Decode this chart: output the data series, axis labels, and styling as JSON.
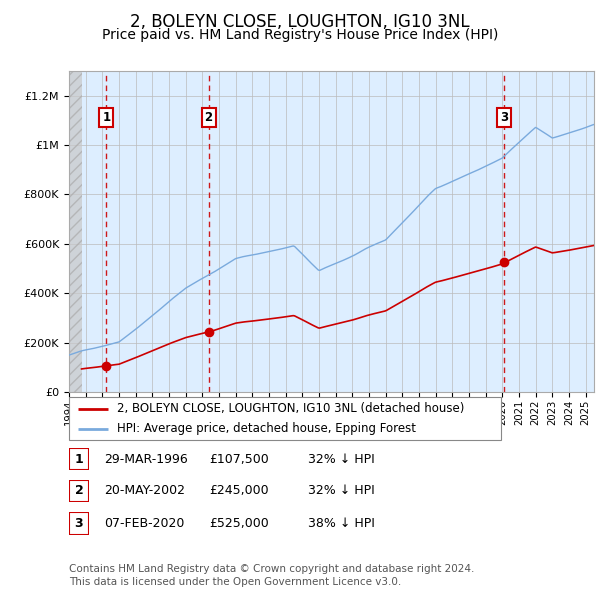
{
  "title": "2, BOLEYN CLOSE, LOUGHTON, IG10 3NL",
  "subtitle": "Price paid vs. HM Land Registry's House Price Index (HPI)",
  "xlim_start": 1994.0,
  "xlim_end": 2025.5,
  "ylim_min": 0,
  "ylim_max": 1300000,
  "yticks": [
    0,
    200000,
    400000,
    600000,
    800000,
    1000000,
    1200000
  ],
  "ytick_labels": [
    "£0",
    "£200K",
    "£400K",
    "£600K",
    "£800K",
    "£1M",
    "£1.2M"
  ],
  "transactions": [
    {
      "date_num": 1996.24,
      "price": 107500,
      "label": "1"
    },
    {
      "date_num": 2002.38,
      "price": 245000,
      "label": "2"
    },
    {
      "date_num": 2020.1,
      "price": 525000,
      "label": "3"
    }
  ],
  "transaction_color": "#cc0000",
  "hpi_line_color": "#7aaadd",
  "background_plot": "#ddeeff",
  "hatch_color": "#c8c8c8",
  "grid_color": "#bbbbbb",
  "legend_items": [
    "2, BOLEYN CLOSE, LOUGHTON, IG10 3NL (detached house)",
    "HPI: Average price, detached house, Epping Forest"
  ],
  "table_rows": [
    {
      "num": "1",
      "date": "29-MAR-1996",
      "price": "£107,500",
      "note": "32% ↓ HPI"
    },
    {
      "num": "2",
      "date": "20-MAY-2002",
      "price": "£245,000",
      "note": "32% ↓ HPI"
    },
    {
      "num": "3",
      "date": "07-FEB-2020",
      "price": "£525,000",
      "note": "38% ↓ HPI"
    }
  ],
  "footnote": "Contains HM Land Registry data © Crown copyright and database right 2024.\nThis data is licensed under the Open Government Licence v3.0.",
  "title_fontsize": 12,
  "subtitle_fontsize": 10,
  "tick_fontsize": 8
}
